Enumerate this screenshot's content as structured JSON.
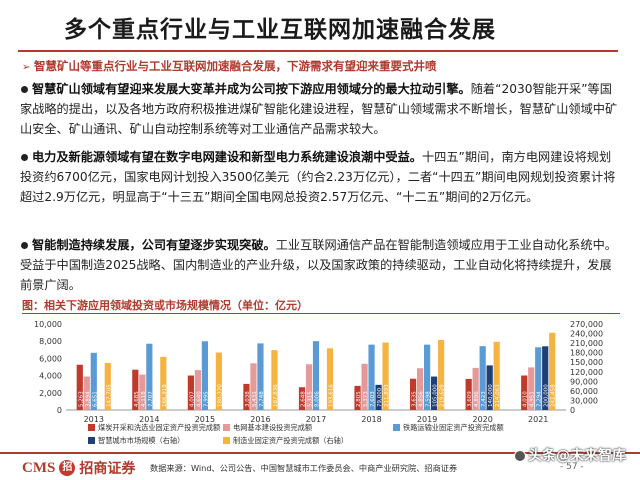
{
  "title": "多个重点行业与工业互联网加速融合发展",
  "summary": "智慧矿山等重点行业与工业互联网加速融合发展，下游需求有望迎来重要式井喷",
  "paragraphs": [
    {
      "lead": "智慧矿山领域有望迎来发展大变革并成为公司按下游应用领域分的最大拉动引擎。",
      "body": "随着“2030智能开采”等国家战略的提出，以及各地方政府积极推进煤矿智能化建设进程，智慧矿山领域需求不断增长，智慧矿山领域中矿山安全、矿山通讯、矿山自动控制系统等对工业通信产品需求较大。"
    },
    {
      "lead": "电力及新能源领域有望在数字电网建设和新型电力系统建设浪潮中受益。",
      "body": "十四五”期间，南方电网建设将规划投资约6700亿元，国家电网计划投入3500亿美元（约合2.23万亿元），二者“十四五”期间电网规划投资累计将超过2.9万亿元，明显高于“十三五”期间全国电网总投资2.57万亿元、“十二五”期间的2万亿元。"
    },
    {
      "lead": "智能制造持续发展，公司有望逐步实现突破。",
      "body": "工业互联网通信产品在智能制造领域应用于工业自动化系统中。受益于中国制造2025战略、国内制造业的产业升级，以及国家政策的持续驱动，工业自动化将持续提升，发展前景广阔。"
    }
  ],
  "figure_caption": "图：相关下游应用领域投资或市场规模情况（单位：亿元）",
  "chart_data": {
    "type": "bar",
    "categories": [
      "2013",
      "2014",
      "2015",
      "2016",
      "2017",
      "2018",
      "2019",
      "2020",
      "2021"
    ],
    "ylim_left": [
      0,
      10000
    ],
    "yticks_left": [
      "0",
      "2,000",
      "4,000",
      "6,000",
      "8,000",
      "10,000"
    ],
    "ylim_right": [
      0,
      270000
    ],
    "yticks_right": [
      "0",
      "30,000",
      "60,000",
      "90,000",
      "120,000",
      "150,000",
      "180,000",
      "210,000",
      "240,000",
      "270,000"
    ],
    "series": [
      {
        "name": "煤炭开采和洗选业固定资产投资完成额",
        "axis": "left",
        "color": "#c0392b",
        "values": [
          5263,
          4685,
          4007,
          3038,
          2648,
          2805,
          3635,
          3609,
          4010
        ],
        "labels": [
          "5,263",
          "4,685",
          "4,007",
          "3,038",
          "2,648",
          "2,805",
          "3,635",
          "3,609",
          "4,010"
        ]
      },
      {
        "name": "电网基本建设投资完成额",
        "axis": "left",
        "color": "#e59a9a",
        "values": [
          3894,
          4118,
          4640,
          5431,
          5315,
          5373,
          4856,
          4896,
          4951
        ],
        "labels": [
          "3,894",
          "4,118",
          "4,640",
          "5,431",
          "5,315",
          "5,373",
          "4,856",
          "4,896",
          "4,951"
        ]
      },
      {
        "name": "铁路运输业固定资产投资完成额",
        "axis": "left",
        "color": "#5b9bd5",
        "values": [
          6651,
          7707,
          7995,
          7748,
          8006,
          7603,
          7598,
          7423,
          7294
        ],
        "labels": [
          "6,651",
          "7,707",
          "7,995",
          "7,748",
          "8,006",
          "7,603",
          "7,598",
          "7,423",
          "7,294"
        ]
      },
      {
        "name": "智慧城市市场规模（右轴）",
        "axis": "right",
        "color": "#1f3f77",
        "values": [
          0,
          0,
          0,
          0,
          0,
          79000,
          105000,
          140000,
          200000
        ],
        "labels": [
          "",
          "",
          "",
          "",
          "",
          "79,000",
          "105,000",
          "140,000",
          "200,000"
        ]
      },
      {
        "name": "制造业固定资产投资完成额（右轴）",
        "axis": "right",
        "color": "#f5b342",
        "values": [
          147705,
          166918,
          180370,
          187836,
          193616,
          211893,
          219628,
          214063,
          242458
        ],
        "labels": [
          "147,705",
          "166,918",
          "180,370",
          "187,836",
          "193,616",
          "211,893",
          "219,628",
          "214,063",
          "242,458"
        ]
      }
    ]
  },
  "footer": {
    "logo_en": "CMS",
    "logo_mark": "招",
    "logo_cn": "招商证券",
    "source": "数据来源：Wind、公司公告、中国智慧城市工作委员会、中商产业研究院、招商证券",
    "page": "- 57 -",
    "watermark": "头条@未来智库"
  }
}
